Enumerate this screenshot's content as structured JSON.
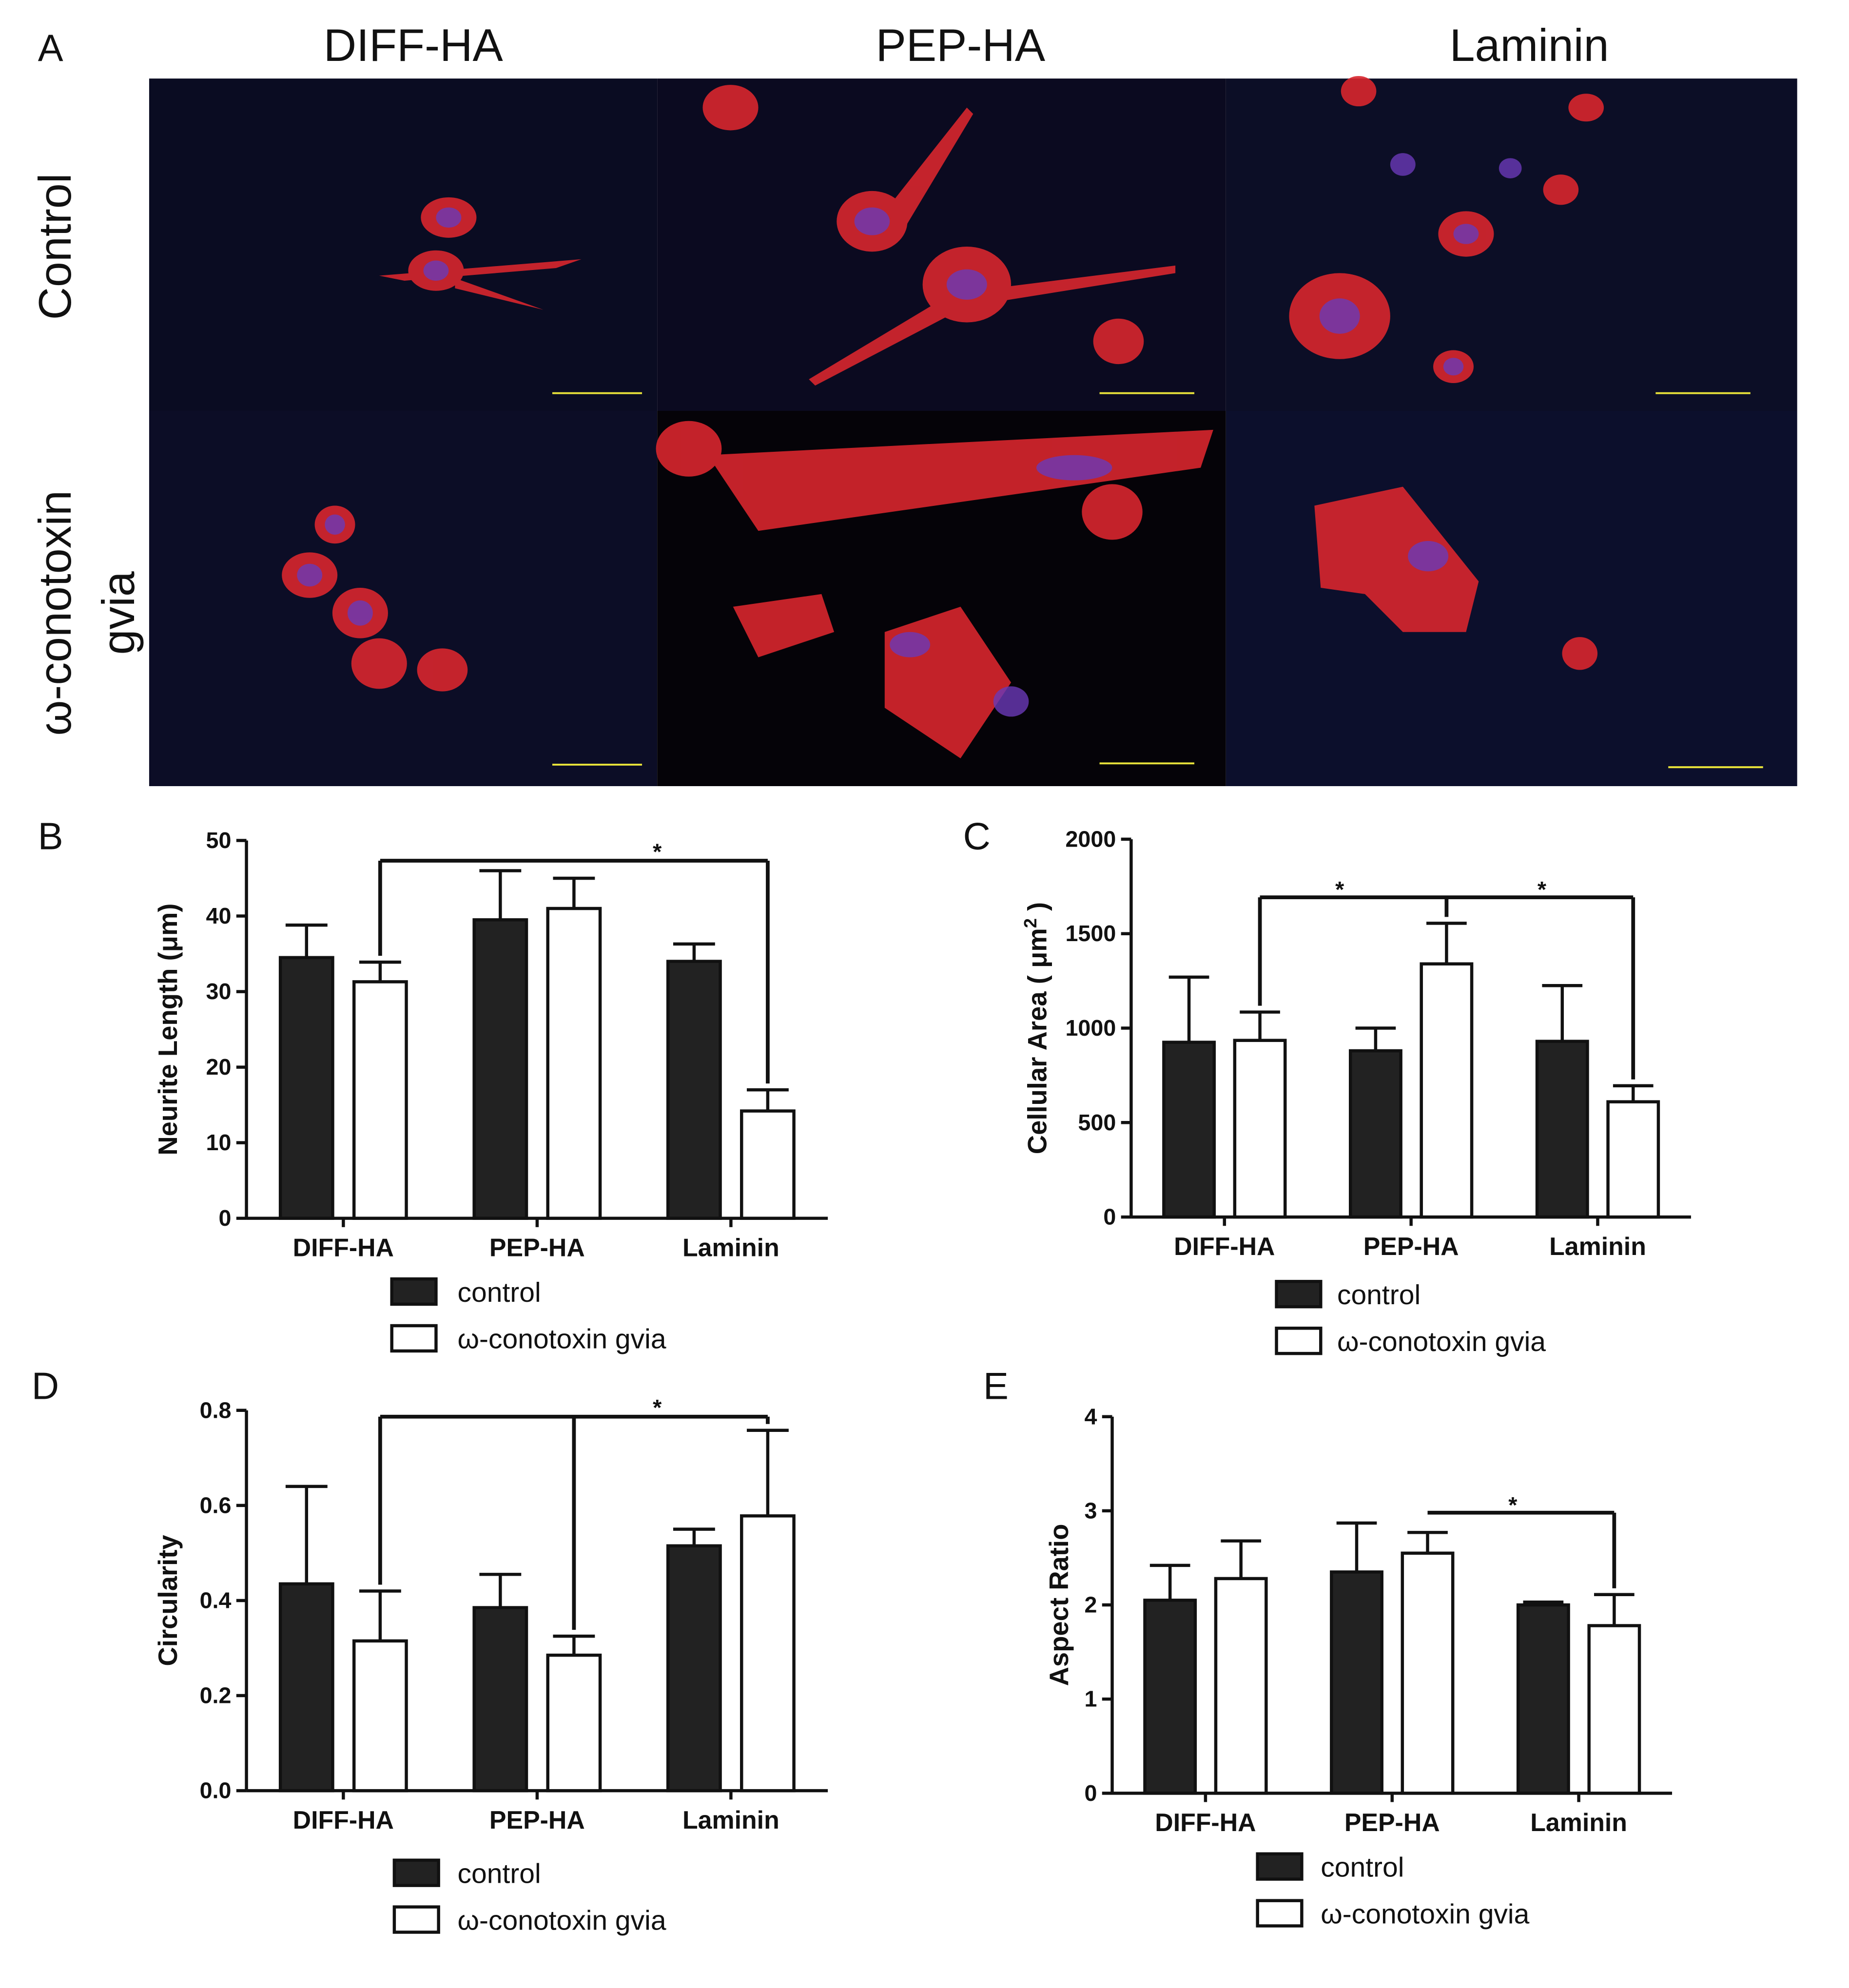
{
  "panel_a": {
    "label": "A",
    "columns": [
      "DIFF-HA",
      "PEP-HA",
      "Laminin"
    ],
    "rows": [
      "Control",
      "ω-conotoxin",
      "gvia"
    ]
  },
  "chart_data": [
    {
      "type": "bar",
      "panel": "B",
      "ylabel": "Neurite Length (μm)",
      "categories": [
        "DIFF-HA",
        "PEP-HA",
        "Laminin"
      ],
      "series": [
        {
          "name": "control",
          "color": "#222222",
          "values": [
            34.5,
            39.5,
            34
          ],
          "errors": [
            4.3,
            6.5,
            2.3
          ]
        },
        {
          "name": "ω-conotoxin gvia",
          "color": "#ffffff",
          "values": [
            31.3,
            41,
            14.2
          ],
          "errors": [
            2.6,
            4,
            2.8
          ]
        }
      ],
      "ylim": [
        0,
        50
      ],
      "yticks": [
        0,
        10,
        20,
        30,
        40,
        50
      ],
      "annotations": [
        "*"
      ]
    },
    {
      "type": "bar",
      "panel": "C",
      "ylabel": "Cellular Area ( μm",
      "ylabel_sup": "2",
      "ylabel_end": " )",
      "categories": [
        "DIFF-HA",
        "PEP-HA",
        "Laminin"
      ],
      "series": [
        {
          "name": "control",
          "color": "#222222",
          "values": [
            925,
            880,
            930
          ],
          "errors": [
            345,
            120,
            295
          ]
        },
        {
          "name": "ω-conotoxin gvia",
          "color": "#ffffff",
          "values": [
            935,
            1340,
            610
          ],
          "errors": [
            150,
            215,
            85
          ]
        }
      ],
      "ylim": [
        0,
        2000
      ],
      "yticks": [
        0,
        500,
        1000,
        1500,
        2000
      ],
      "annotations": [
        "*",
        "*"
      ]
    },
    {
      "type": "bar",
      "panel": "D",
      "ylabel": "Circularity",
      "categories": [
        "DIFF-HA",
        "PEP-HA",
        "Laminin"
      ],
      "series": [
        {
          "name": "control",
          "color": "#222222",
          "values": [
            0.435,
            0.385,
            0.515
          ],
          "errors": [
            0.205,
            0.07,
            0.035
          ]
        },
        {
          "name": "ω-conotoxin gvia",
          "color": "#ffffff",
          "values": [
            0.315,
            0.285,
            0.578
          ],
          "errors": [
            0.105,
            0.04,
            0.18
          ]
        }
      ],
      "ylim": [
        0,
        0.8
      ],
      "yticks": [
        {
          "value": 0,
          "label": "0.0"
        },
        0.2,
        0.4,
        0.6,
        0.8
      ],
      "annotations": [
        "*"
      ]
    },
    {
      "type": "bar",
      "panel": "E",
      "ylabel": "Aspect Ratio",
      "categories": [
        "DIFF-HA",
        "PEP-HA",
        "Laminin"
      ],
      "series": [
        {
          "name": "control",
          "color": "#222222",
          "values": [
            2.05,
            2.35,
            2.0
          ],
          "errors": [
            0.37,
            0.52,
            0.03
          ]
        },
        {
          "name": "ω-conotoxin gvia",
          "color": "#ffffff",
          "values": [
            2.28,
            2.55,
            1.78
          ],
          "errors": [
            0.4,
            0.22,
            0.33
          ]
        }
      ],
      "ylim": [
        0,
        4
      ],
      "yticks": [
        0,
        1,
        2,
        3,
        4
      ],
      "annotations": [
        "*"
      ]
    }
  ]
}
